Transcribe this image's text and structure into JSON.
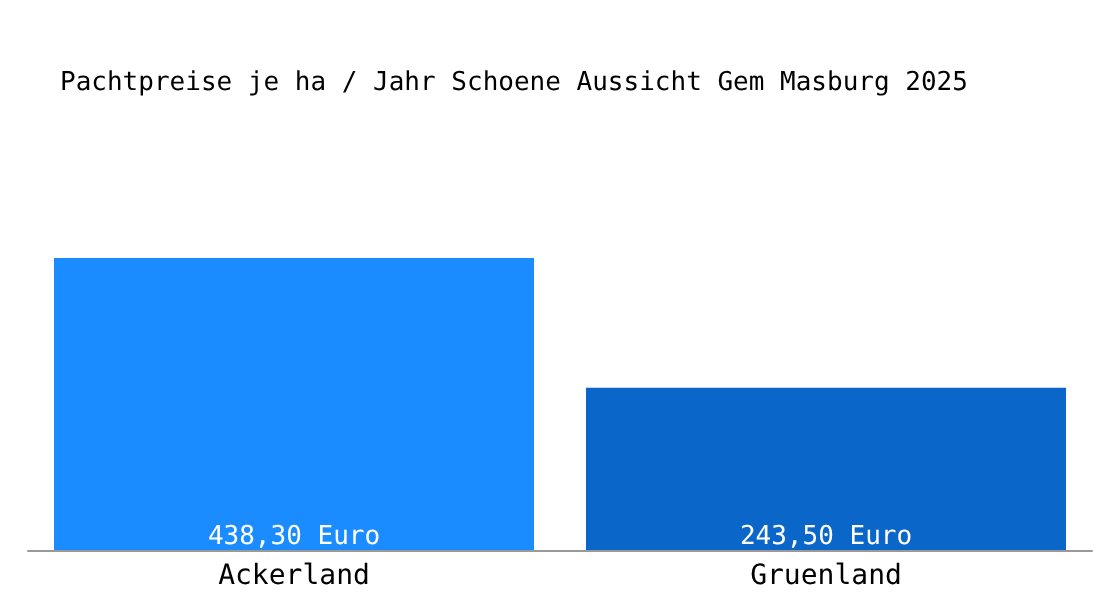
{
  "chart_data": {
    "type": "bar",
    "title": "Pachtpreise je ha / Jahr Schoene Aussicht Gem Masburg 2025",
    "categories": [
      "Ackerland",
      "Gruenland"
    ],
    "values": [
      438.3,
      243.5
    ],
    "colors": [
      "#1a8cff",
      "#0a66c8"
    ],
    "value_labels": [
      "438,30 Euro",
      "243,50 Euro"
    ]
  }
}
